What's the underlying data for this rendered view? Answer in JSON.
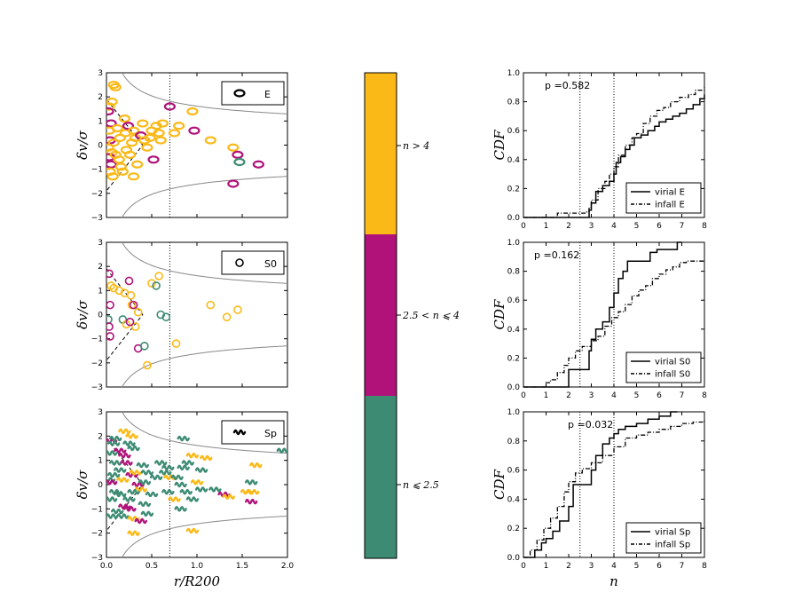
{
  "colors": {
    "high": "#fbb917",
    "mid": "#b0127a",
    "low": "#3d8b73",
    "curve": "#888888"
  },
  "shared": {
    "scatter_xlabel": "r/R200",
    "scatter_ylabel": "δv/σ",
    "cdf_xlabel": "n",
    "cdf_ylabel": "CDF",
    "scatter_xticks": [
      "0.0",
      "0.5",
      "1.0",
      "1.5",
      "2.0"
    ],
    "scatter_yticks": [
      "−3",
      "−2",
      "−1",
      "0",
      "1",
      "2",
      "3"
    ],
    "cdf_xticks": [
      "0",
      "1",
      "2",
      "3",
      "4",
      "5",
      "6",
      "7",
      "8"
    ],
    "cdf_yticks": [
      "0.0",
      "0.2",
      "0.4",
      "0.6",
      "0.8",
      "1.0"
    ]
  },
  "colorbar": {
    "labels": [
      "n > 4",
      "2.5 < n ⩽ 4",
      "n ⩽ 2.5"
    ]
  },
  "chart_data": [
    {
      "type": "scatter",
      "name": "phase-space-E",
      "legend": "E",
      "marker": "ellipse",
      "xlim": [
        0,
        2
      ],
      "ylim": [
        -3,
        3
      ],
      "vline_x": 0.7,
      "points": [
        [
          0.08,
          2.5,
          "high"
        ],
        [
          0.1,
          2.4,
          "high"
        ],
        [
          0.06,
          1.8,
          "high"
        ],
        [
          0.03,
          1.6,
          "high"
        ],
        [
          0.02,
          1.4,
          "mid"
        ],
        [
          0.05,
          0.9,
          "mid"
        ],
        [
          0.03,
          0.6,
          "high"
        ],
        [
          0.04,
          0.2,
          "mid"
        ],
        [
          0.02,
          -0.1,
          "high"
        ],
        [
          0.06,
          -0.3,
          "high"
        ],
        [
          0.03,
          -0.5,
          "mid"
        ],
        [
          0.05,
          -0.8,
          "mid"
        ],
        [
          0.04,
          -1.1,
          "high"
        ],
        [
          0.07,
          -1.3,
          "high"
        ],
        [
          0.1,
          -0.4,
          "high"
        ],
        [
          0.12,
          0.7,
          "high"
        ],
        [
          0.15,
          0.3,
          "high"
        ],
        [
          0.14,
          -0.6,
          "high"
        ],
        [
          0.16,
          -0.9,
          "high"
        ],
        [
          0.2,
          1.1,
          "high"
        ],
        [
          0.21,
          0.5,
          "high"
        ],
        [
          0.22,
          -0.2,
          "high"
        ],
        [
          0.24,
          0.8,
          "mid"
        ],
        [
          0.26,
          -0.4,
          "high"
        ],
        [
          0.28,
          0.1,
          "high"
        ],
        [
          0.3,
          0.6,
          "high"
        ],
        [
          0.32,
          0.3,
          "high"
        ],
        [
          0.34,
          -0.8,
          "high"
        ],
        [
          0.38,
          0.4,
          "mid"
        ],
        [
          0.4,
          0.9,
          "high"
        ],
        [
          0.42,
          0.2,
          "high"
        ],
        [
          0.45,
          -0.1,
          "high"
        ],
        [
          0.5,
          0.6,
          "high"
        ],
        [
          0.48,
          0.3,
          "high"
        ],
        [
          0.55,
          0.8,
          "high"
        ],
        [
          0.58,
          0.5,
          "high"
        ],
        [
          0.6,
          0.2,
          "high"
        ],
        [
          0.52,
          -0.6,
          "mid"
        ],
        [
          0.62,
          0.9,
          "high"
        ],
        [
          0.7,
          1.6,
          "mid"
        ],
        [
          0.75,
          0.5,
          "high"
        ],
        [
          0.8,
          0.8,
          "high"
        ],
        [
          0.95,
          1.4,
          "high"
        ],
        [
          0.97,
          0.6,
          "mid"
        ],
        [
          1.15,
          0.2,
          "high"
        ],
        [
          1.4,
          -0.1,
          "high"
        ],
        [
          1.45,
          -0.4,
          "mid"
        ],
        [
          1.47,
          -0.7,
          "low"
        ],
        [
          1.68,
          -0.8,
          "mid"
        ],
        [
          1.4,
          -1.6,
          "mid"
        ],
        [
          0.3,
          -1.3,
          "high"
        ],
        [
          0.18,
          -1.1,
          "high"
        ],
        [
          0.08,
          0.1,
          "high"
        ]
      ]
    },
    {
      "type": "scatter",
      "name": "phase-space-S0",
      "legend": "S0",
      "marker": "circle",
      "xlim": [
        0,
        2
      ],
      "ylim": [
        -3,
        3
      ],
      "vline_x": 0.7,
      "points": [
        [
          0.03,
          1.7,
          "mid"
        ],
        [
          0.05,
          1.2,
          "high"
        ],
        [
          0.08,
          1.1,
          "high"
        ],
        [
          0.14,
          1.0,
          "high"
        ],
        [
          0.2,
          0.9,
          "high"
        ],
        [
          0.25,
          1.4,
          "mid"
        ],
        [
          0.27,
          0.8,
          "high"
        ],
        [
          0.28,
          0.4,
          "high"
        ],
        [
          0.3,
          0.4,
          "mid"
        ],
        [
          0.35,
          0.1,
          "high"
        ],
        [
          0.04,
          0.4,
          "mid"
        ],
        [
          0.02,
          -0.2,
          "low"
        ],
        [
          0.03,
          -0.5,
          "mid"
        ],
        [
          0.04,
          -0.9,
          "mid"
        ],
        [
          0.18,
          -0.2,
          "low"
        ],
        [
          0.22,
          -0.4,
          "high"
        ],
        [
          0.32,
          -0.5,
          "high"
        ],
        [
          0.35,
          -1.4,
          "mid"
        ],
        [
          0.42,
          -1.3,
          "low"
        ],
        [
          0.5,
          1.3,
          "high"
        ],
        [
          0.55,
          1.2,
          "low"
        ],
        [
          0.58,
          1.6,
          "high"
        ],
        [
          0.6,
          0.0,
          "low"
        ],
        [
          0.66,
          -0.1,
          "low"
        ],
        [
          0.77,
          -1.2,
          "high"
        ],
        [
          0.45,
          -2.1,
          "high"
        ],
        [
          1.15,
          0.4,
          "high"
        ],
        [
          1.33,
          -0.1,
          "high"
        ],
        [
          1.45,
          0.2,
          "high"
        ],
        [
          0.26,
          -0.3,
          "mid"
        ]
      ]
    },
    {
      "type": "scatter",
      "name": "phase-space-Sp",
      "legend": "Sp",
      "marker": "wave",
      "xlim": [
        0,
        2
      ],
      "ylim": [
        -3,
        3
      ],
      "vline_x": 0.7,
      "points": [
        [
          0.05,
          1.8,
          "mid"
        ],
        [
          0.1,
          1.9,
          "low"
        ],
        [
          0.08,
          1.7,
          "low"
        ],
        [
          0.2,
          2.2,
          "high"
        ],
        [
          0.25,
          1.7,
          "low"
        ],
        [
          0.3,
          1.5,
          "low"
        ],
        [
          0.15,
          1.4,
          "mid"
        ],
        [
          0.2,
          1.2,
          "mid"
        ],
        [
          0.05,
          1.3,
          "low"
        ],
        [
          0.1,
          0.9,
          "low"
        ],
        [
          0.15,
          0.6,
          "low"
        ],
        [
          0.08,
          0.4,
          "low"
        ],
        [
          0.03,
          0.2,
          "low"
        ],
        [
          0.05,
          0.1,
          "mid"
        ],
        [
          0.18,
          0.2,
          "high"
        ],
        [
          0.22,
          0.9,
          "mid"
        ],
        [
          0.28,
          0.4,
          "mid"
        ],
        [
          0.32,
          0.5,
          "high"
        ],
        [
          0.35,
          0.0,
          "mid"
        ],
        [
          0.4,
          0.8,
          "low"
        ],
        [
          0.45,
          0.5,
          "low"
        ],
        [
          0.42,
          0.1,
          "low"
        ],
        [
          0.38,
          -0.2,
          "high"
        ],
        [
          0.3,
          -0.3,
          "low"
        ],
        [
          0.25,
          -0.6,
          "low"
        ],
        [
          0.2,
          -0.9,
          "mid"
        ],
        [
          0.15,
          -0.4,
          "low"
        ],
        [
          0.1,
          -0.3,
          "low"
        ],
        [
          0.05,
          -0.6,
          "low"
        ],
        [
          0.06,
          -1.3,
          "low"
        ],
        [
          0.12,
          -1.1,
          "low"
        ],
        [
          0.18,
          -1.3,
          "low"
        ],
        [
          0.26,
          -1.0,
          "mid"
        ],
        [
          0.3,
          -1.4,
          "high"
        ],
        [
          0.38,
          -1.5,
          "mid"
        ],
        [
          0.42,
          -0.8,
          "low"
        ],
        [
          0.45,
          -1.2,
          "low"
        ],
        [
          0.5,
          -0.4,
          "low"
        ],
        [
          0.55,
          0.3,
          "low"
        ],
        [
          0.6,
          0.9,
          "low"
        ],
        [
          0.65,
          0.5,
          "low"
        ],
        [
          0.7,
          0.3,
          "high"
        ],
        [
          0.68,
          -0.3,
          "low"
        ],
        [
          0.78,
          0.3,
          "low"
        ],
        [
          0.82,
          0.0,
          "low"
        ],
        [
          0.85,
          0.7,
          "low"
        ],
        [
          0.88,
          -0.3,
          "low"
        ],
        [
          0.9,
          0.9,
          "low"
        ],
        [
          0.95,
          1.2,
          "high"
        ],
        [
          0.95,
          -0.6,
          "low"
        ],
        [
          1.0,
          0.1,
          "high"
        ],
        [
          1.05,
          -0.2,
          "low"
        ],
        [
          1.1,
          1.1,
          "high"
        ],
        [
          1.05,
          0.6,
          "low"
        ],
        [
          0.85,
          1.9,
          "low"
        ],
        [
          0.28,
          2.0,
          "high"
        ],
        [
          0.3,
          -2.0,
          "high"
        ],
        [
          0.95,
          -1.9,
          "high"
        ],
        [
          1.2,
          -0.2,
          "low"
        ],
        [
          1.3,
          -0.4,
          "mid"
        ],
        [
          1.35,
          -0.5,
          "high"
        ],
        [
          1.55,
          -0.3,
          "high"
        ],
        [
          1.6,
          -0.7,
          "mid"
        ],
        [
          1.62,
          -0.3,
          "high"
        ],
        [
          1.6,
          0.1,
          "low"
        ],
        [
          1.65,
          0.8,
          "high"
        ],
        [
          1.95,
          1.4,
          "low"
        ],
        [
          0.68,
          0.7,
          "low"
        ],
        [
          0.82,
          -1.0,
          "low"
        ],
        [
          0.75,
          -0.6,
          "high"
        ]
      ]
    },
    {
      "type": "step-cdf",
      "name": "cdf-E",
      "p_value": "0.582",
      "xlim": [
        0,
        8
      ],
      "ylim": [
        0,
        1
      ],
      "vlines": [
        2.5,
        4.0
      ],
      "series": [
        {
          "name": "virial E",
          "dash": "solid",
          "x": [
            0,
            2.8,
            2.9,
            3.0,
            3.2,
            3.5,
            3.8,
            4.0,
            4.1,
            4.3,
            4.5,
            4.7,
            4.9,
            5.2,
            5.5,
            5.8,
            6.0,
            6.3,
            6.6,
            6.9,
            7.2,
            7.5,
            7.8,
            8.0
          ],
          "y": [
            0,
            0,
            0.05,
            0.1,
            0.18,
            0.22,
            0.25,
            0.3,
            0.38,
            0.42,
            0.47,
            0.5,
            0.55,
            0.57,
            0.6,
            0.63,
            0.66,
            0.68,
            0.7,
            0.72,
            0.75,
            0.78,
            0.82,
            0.85
          ]
        },
        {
          "name": "infall E",
          "dash": "dashdot",
          "x": [
            0,
            1.5,
            2.8,
            2.9,
            3.0,
            3.3,
            3.6,
            3.8,
            4.0,
            4.2,
            4.5,
            4.8,
            5.0,
            5.3,
            5.6,
            5.9,
            6.2,
            6.5,
            6.9,
            7.3,
            7.6,
            8.0
          ],
          "y": [
            0,
            0.03,
            0.04,
            0.07,
            0.12,
            0.2,
            0.25,
            0.3,
            0.35,
            0.43,
            0.5,
            0.55,
            0.58,
            0.65,
            0.7,
            0.74,
            0.76,
            0.8,
            0.83,
            0.85,
            0.88,
            0.9
          ]
        }
      ]
    },
    {
      "type": "step-cdf",
      "name": "cdf-S0",
      "p_value": "0.162",
      "xlim": [
        0,
        8
      ],
      "ylim": [
        0,
        1
      ],
      "vlines": [
        2.5,
        4.0
      ],
      "series": [
        {
          "name": "virial S0",
          "dash": "solid",
          "x": [
            0,
            1.8,
            2.0,
            2.9,
            3.0,
            3.2,
            3.5,
            3.8,
            4.0,
            4.2,
            4.4,
            4.6,
            5.6,
            5.9,
            6.8,
            7.0
          ],
          "y": [
            0,
            0,
            0.12,
            0.25,
            0.33,
            0.4,
            0.45,
            0.55,
            0.65,
            0.75,
            0.8,
            0.87,
            0.93,
            0.95,
            1.0,
            1.0
          ]
        },
        {
          "name": "infall S0",
          "dash": "dashdot",
          "x": [
            0,
            1.0,
            1.2,
            1.5,
            1.8,
            2.0,
            2.3,
            2.6,
            3.0,
            3.3,
            3.6,
            3.9,
            4.2,
            4.5,
            4.8,
            5.1,
            5.4,
            5.7,
            6.0,
            6.3,
            6.6,
            6.9,
            7.2,
            8.0
          ],
          "y": [
            0,
            0.03,
            0.05,
            0.1,
            0.15,
            0.2,
            0.25,
            0.28,
            0.32,
            0.35,
            0.42,
            0.48,
            0.52,
            0.57,
            0.63,
            0.67,
            0.7,
            0.75,
            0.78,
            0.81,
            0.83,
            0.86,
            0.87,
            0.87
          ]
        }
      ]
    },
    {
      "type": "step-cdf",
      "name": "cdf-Sp",
      "p_value": "0.032",
      "xlim": [
        0,
        8
      ],
      "ylim": [
        0,
        1
      ],
      "vlines": [
        2.5,
        4.0
      ],
      "series": [
        {
          "name": "virial Sp",
          "dash": "solid",
          "x": [
            0,
            0.5,
            0.8,
            1.0,
            1.3,
            1.6,
            2.0,
            2.2,
            2.5,
            2.8,
            3.0,
            3.2,
            3.5,
            3.8,
            4.0,
            4.2,
            4.5,
            5.0,
            5.5,
            6.0,
            6.5,
            6.8
          ],
          "y": [
            0,
            0.05,
            0.1,
            0.13,
            0.18,
            0.25,
            0.35,
            0.5,
            0.5,
            0.5,
            0.6,
            0.7,
            0.78,
            0.82,
            0.85,
            0.88,
            0.9,
            0.92,
            0.95,
            0.97,
            1.0,
            1.0
          ]
        },
        {
          "name": "infall Sp",
          "dash": "dashdot",
          "x": [
            0,
            0.3,
            0.6,
            0.9,
            1.2,
            1.5,
            1.8,
            2.0,
            2.3,
            2.6,
            3.0,
            3.5,
            4.0,
            4.5,
            5.0,
            5.5,
            6.0,
            6.5,
            7.0,
            7.5,
            8.0
          ],
          "y": [
            0,
            0.05,
            0.12,
            0.2,
            0.27,
            0.35,
            0.45,
            0.52,
            0.58,
            0.61,
            0.65,
            0.7,
            0.76,
            0.82,
            0.84,
            0.86,
            0.88,
            0.9,
            0.92,
            0.93,
            0.94
          ]
        }
      ]
    }
  ]
}
